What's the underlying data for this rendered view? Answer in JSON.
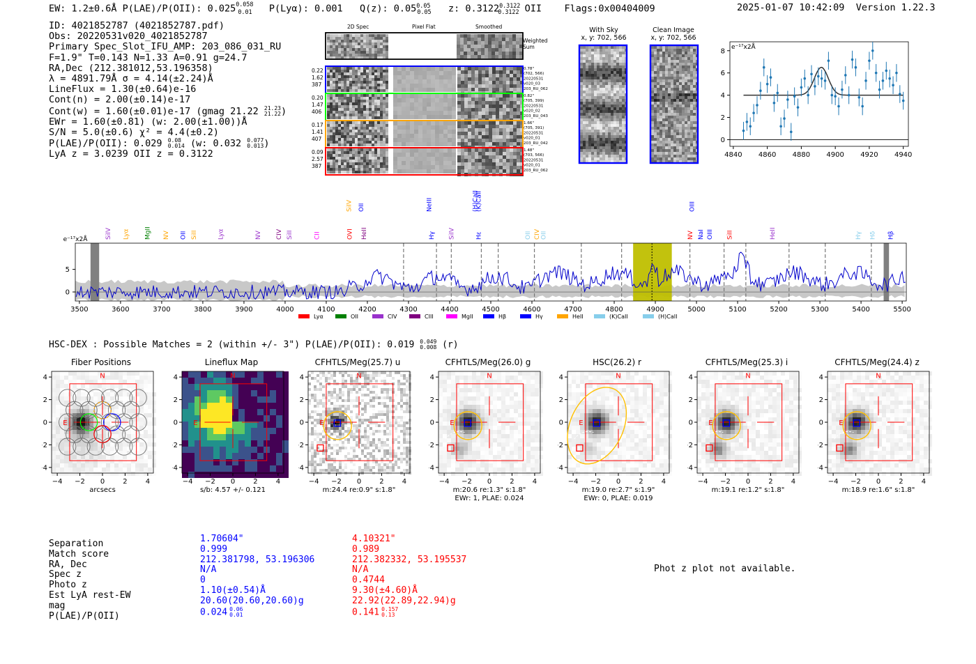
{
  "header": {
    "left": "EW: 1.2±0.6Å  P(LAE)/P(OII): 0.025",
    "left_sup": "0.058",
    "left_sub": "0.01",
    "plya": "P(Lyα): 0.001",
    "qz": "Q(z): 0.05",
    "qz_sup": "0.05",
    "qz_sub": "0.05",
    "z": "z: 0.3122",
    "z_sup": "0.3122",
    "z_sub": "0.3122",
    "z_line": "OII",
    "flags": "Flags:0x00404009",
    "datetime": "2025-01-07 10:42:09",
    "version": "Version 1.22.3"
  },
  "info": {
    "id": "ID: 4021852787 (4021852787.pdf)",
    "obs": "Obs: 20220531v020_4021852787",
    "primary": "Primary Spec_Slot_IFU_AMP: 203_086_031_RU",
    "fparams": "F=1.9\"  T=0.143  N=1.33  A=0.91  g=24.7",
    "radec": "RA,Dec (212.381012,53.196358)",
    "lambda": "λ = 4891.79Å  σ = 4.14(±2.24)Å",
    "lineflux": "LineFlux = 1.30(±0.64)e-16",
    "contn": "Cont(n) = 2.00(±0.14)e-17",
    "contw": "Cont(w) = 1.60(±0.01)e-17 (gmag 21.22",
    "contw_sup": "21.23",
    "contw_sub": "21.22",
    "contw_end": ")",
    "ewr": "EWr = 1.60(±0.81) (w: 2.00(±1.00))Å",
    "sn": "S/N = 5.0(±0.6)  χ² = 4.4(±0.2)",
    "plae": "P(LAE)/P(OII): 0.029",
    "plae_sup": "0.08",
    "plae_sub": "0.014",
    "plae_w": "(w: 0.032",
    "plae_w_sup": "0.077",
    "plae_w_sub": "0.013",
    "plae_end": ")",
    "lyaz": "LyA z = 3.0239  OII z = 0.3122"
  },
  "cutouts": {
    "col1": "2D Spec",
    "col2": "Pixel Flat",
    "col3": "Smoothed",
    "weighted": "Weighted",
    "sum": "Sum",
    "rows": [
      {
        "left": [
          "0.22",
          "1.62",
          "387"
        ],
        "right": [
          "0.78\"",
          "(702, 566)",
          "20220531",
          "v020_03",
          "203_RU_062"
        ],
        "color": "#0000ff"
      },
      {
        "left": [
          "0.20",
          "1.47",
          "406"
        ],
        "right": [
          "0.82\"",
          "(705, 399)",
          "20220531",
          "v020_02",
          "203_RU_043"
        ],
        "color": "#00ff00"
      },
      {
        "left": [
          "0.17",
          "1.41",
          "407"
        ],
        "right": [
          "1.66\"",
          "(705, 391)",
          "20220531",
          "v020_01",
          "203_RU_042"
        ],
        "color": "#ffa500"
      },
      {
        "left": [
          "0.09",
          "2.57",
          "387"
        ],
        "right": [
          "1.48\"",
          "(703, 566)",
          "20220531",
          "v020_01",
          "203_RU_062"
        ],
        "color": "#ff0000"
      }
    ],
    "withsky_title": "With Sky",
    "withsky_coord": "x, y: 702, 566",
    "clean_title": "Clean Image",
    "clean_coord": "x, y: 702, 566"
  },
  "line_fit": {
    "type": "line",
    "ylabel": "e⁻¹⁷x2Å",
    "xlim": [
      4838,
      4943
    ],
    "ylim": [
      -0.6,
      8.8
    ],
    "xticks": [
      4840,
      4860,
      4880,
      4900,
      4920,
      4940
    ],
    "yticks": [
      0,
      2,
      4,
      6,
      8
    ],
    "x": [
      4846,
      4848,
      4850,
      4852,
      4854,
      4856,
      4858,
      4860,
      4862,
      4864,
      4866,
      4868,
      4870,
      4872,
      4874,
      4876,
      4878,
      4880,
      4882,
      4884,
      4886,
      4888,
      4890,
      4892,
      4894,
      4896,
      4898,
      4900,
      4902,
      4904,
      4906,
      4908,
      4910,
      4912,
      4914,
      4916,
      4918,
      4920,
      4922,
      4924,
      4926,
      4928,
      4930,
      4932,
      4934,
      4936,
      4938,
      4940
    ],
    "values": [
      0.8,
      1.6,
      1.2,
      2.4,
      3.1,
      4.4,
      6.5,
      5.0,
      5.6,
      3.3,
      4.2,
      1.2,
      1.9,
      3.6,
      0.7,
      3.9,
      2.9,
      4.7,
      5.5,
      4.0,
      5.9,
      4.8,
      5.7,
      5.5,
      5.3,
      7.1,
      4.0,
      3.9,
      3.0,
      4.5,
      5.8,
      4.0,
      7.2,
      6.5,
      3.8,
      3.0,
      5.3,
      7.1,
      8.0,
      6.0,
      4.5,
      5.3,
      6.2,
      5.5,
      4.9,
      6.0,
      4.1,
      3.5
    ],
    "model": {
      "continuum": 4.0,
      "amplitude": 2.5,
      "center": 4891.8,
      "sigma": 4.1,
      "x_start": 4846,
      "x_end": 4940
    }
  },
  "spectrum": {
    "type": "line",
    "ylabel": "e⁻¹⁷x2Å",
    "xlim": [
      3490,
      5510
    ],
    "ylim": [
      -2.0,
      10.8
    ],
    "xticks": [
      3500,
      3600,
      3700,
      3800,
      3900,
      4000,
      4100,
      4200,
      4300,
      4400,
      4500,
      4600,
      4700,
      4800,
      4900,
      5000,
      5100,
      5200,
      5300,
      5400,
      5500
    ],
    "yticks": [
      0,
      5
    ],
    "highlight": [
      4846,
      4940
    ],
    "dotted_line": 4891.8,
    "gray_bands": [
      [
        3527,
        3548
      ],
      [
        5455,
        5468
      ]
    ],
    "dashed_lines": [
      4288,
      4368,
      4404,
      4477,
      4518,
      4606,
      4720,
      4818,
      4984,
      5067,
      5120,
      5225,
      5313,
      5425
    ],
    "labels": [
      {
        "text": "SiIV",
        "x": 3570,
        "color": "#9932cc",
        "row": 1
      },
      {
        "text": "Lyα",
        "x": 3613,
        "color": "#ffa500",
        "row": 1
      },
      {
        "text": "MgII",
        "x": 3665,
        "color": "#008000",
        "row": 1
      },
      {
        "text": "NV",
        "x": 3710,
        "color": "#ffa500",
        "row": 1
      },
      {
        "text": "OII",
        "x": 3752,
        "color": "#0000ff",
        "row": 1
      },
      {
        "text": "SiII",
        "x": 3778,
        "color": "#ffa500",
        "row": 1
      },
      {
        "text": "Lyα",
        "x": 3843,
        "color": "#9932cc",
        "row": 1
      },
      {
        "text": "NV",
        "x": 3934,
        "color": "#9932cc",
        "row": 1
      },
      {
        "text": "CIV",
        "x": 3985,
        "color": "#800080",
        "row": 1
      },
      {
        "text": "SiII",
        "x": 4010,
        "color": "#9932cc",
        "row": 1
      },
      {
        "text": "CII",
        "x": 4077,
        "color": "#ff00ff",
        "row": 1
      },
      {
        "text": "SiIV",
        "x": 4155,
        "color": "#ffa500",
        "row": 0
      },
      {
        "text": "OII",
        "x": 4185,
        "color": "#0000ff",
        "row": 0
      },
      {
        "text": "OVI",
        "x": 4157,
        "color": "#ff0000",
        "row": 1
      },
      {
        "text": "HeII",
        "x": 4192,
        "color": "#800080",
        "row": 1
      },
      {
        "text": "NeIII",
        "x": 4350,
        "color": "#0000ff",
        "row": 0
      },
      {
        "text": "Hγ",
        "x": 4356,
        "color": "#0000ff",
        "row": 1
      },
      {
        "text": "SiIV",
        "x": 4404,
        "color": "#9932cc",
        "row": 1
      },
      {
        "text": "(H)CaII",
        "x": 4462,
        "color": "#0000ff",
        "row": 0
      },
      {
        "text": "(K)CaII",
        "x": 4470,
        "color": "#0000ff",
        "row": 0
      },
      {
        "text": "Hε",
        "x": 4470,
        "color": "#0000ff",
        "row": 1
      },
      {
        "text": "OII",
        "x": 4590,
        "color": "#87ceeb",
        "row": 1
      },
      {
        "text": "CIV",
        "x": 4612,
        "color": "#ffa500",
        "row": 1
      },
      {
        "text": "OII",
        "x": 4628,
        "color": "#87ceeb",
        "row": 1
      },
      {
        "text": "OIII",
        "x": 4989,
        "color": "#0000ff",
        "row": 0
      },
      {
        "text": "NV",
        "x": 4985,
        "color": "#ff0000",
        "row": 1
      },
      {
        "text": "NaI",
        "x": 5010,
        "color": "#0000ff",
        "row": 1
      },
      {
        "text": "OIII",
        "x": 5032,
        "color": "#0000ff",
        "row": 1
      },
      {
        "text": "SiII",
        "x": 5080,
        "color": "#ff0000",
        "row": 1
      },
      {
        "text": "HeII",
        "x": 5185,
        "color": "#9932cc",
        "row": 1
      },
      {
        "text": "Hγ",
        "x": 5393,
        "color": "#87ceeb",
        "row": 1
      },
      {
        "text": "Hδ",
        "x": 5428,
        "color": "#87ceeb",
        "row": 1
      },
      {
        "text": "Hβ",
        "x": 5472,
        "color": "#0000ff",
        "row": 1
      }
    ],
    "legend": [
      {
        "name": "Lyα",
        "color": "#ff0000"
      },
      {
        "name": "OII",
        "color": "#008000"
      },
      {
        "name": "CIV",
        "color": "#9932cc"
      },
      {
        "name": "CIII",
        "color": "#800080"
      },
      {
        "name": "MgII",
        "color": "#ff00ff"
      },
      {
        "name": "Hβ",
        "color": "#0000ff"
      },
      {
        "name": "Hγ",
        "color": "#0000ff"
      },
      {
        "name": "HeII",
        "color": "#ffa500"
      },
      {
        "name": "(K)CaII",
        "color": "#87ceeb"
      },
      {
        "name": "(H)CaII",
        "color": "#87ceeb"
      }
    ]
  },
  "hsc": {
    "line": "HSC-DEX : Possible Matches = 2 (within +/- 3\")  P(LAE)/P(OII): 0.019",
    "sup": "0.049",
    "sub": "0.008",
    "suffix": "(r)"
  },
  "imaging": {
    "ticks": [
      "4",
      "2",
      "0",
      "−2",
      "−4"
    ],
    "xticks": [
      "−4",
      "−2",
      "0",
      "2",
      "4"
    ],
    "panels": [
      {
        "title": "Fiber Positions",
        "caption": "arcsecs",
        "caption2": "",
        "n": "N",
        "e": "E"
      },
      {
        "title": "Lineflux Map",
        "caption": "s/b: 4.57 +/- 0.121",
        "caption2": "",
        "n": "N",
        "e": "E"
      },
      {
        "title": "CFHTLS/Meg(25.7) u",
        "caption": "m:24.4  re:0.9\"  s:1.8\"",
        "caption2": "",
        "n": "N",
        "e": "E"
      },
      {
        "title": "CFHTLS/Meg(26.0) g",
        "caption": "m:20.6  re:1.3\"  s:1.8\"",
        "caption2": "EWr: 1, PLAE: 0.024",
        "n": "N",
        "e": "E"
      },
      {
        "title": "HSC(26.2) r",
        "caption": "m:19.0  re:2.7\"  s:1.9\"",
        "caption2": "EWr: 0, PLAE: 0.019",
        "n": "N",
        "e": "E"
      },
      {
        "title": "CFHTLS/Meg(25.3) i",
        "caption": "m:19.1  re:1.2\"  s:1.8\"",
        "caption2": "",
        "n": "N",
        "e": "E"
      },
      {
        "title": "CFHTLS/Meg(24.4) z",
        "caption": "m:18.9  re:1.6\"  s:1.8\"",
        "caption2": "",
        "n": "N",
        "e": "E"
      }
    ]
  },
  "matches": {
    "labels": [
      "Separation",
      "Match score",
      "RA, Dec",
      "Spec z",
      "Photo z",
      "Est LyA rest-EW",
      "mag",
      "P(LAE)/P(OII)"
    ],
    "blue": [
      "1.70604\"",
      "0.999",
      "212.381798, 53.196306",
      "N/A",
      "0",
      "1.10(±0.54)Å",
      "20.60(20.60,20.60)g",
      "0.024"
    ],
    "blue_sup": "0.06",
    "blue_sub": "0.01",
    "red": [
      "4.10321\"",
      "0.989",
      "212.382332, 53.195537",
      "N/A",
      "0.4744",
      "9.30(±4.60)Å",
      "22.92(22.89,22.94)g",
      "0.141"
    ],
    "red_sup": "0.157",
    "red_sub": "0.13",
    "photz_note": "Phot z plot not available."
  }
}
